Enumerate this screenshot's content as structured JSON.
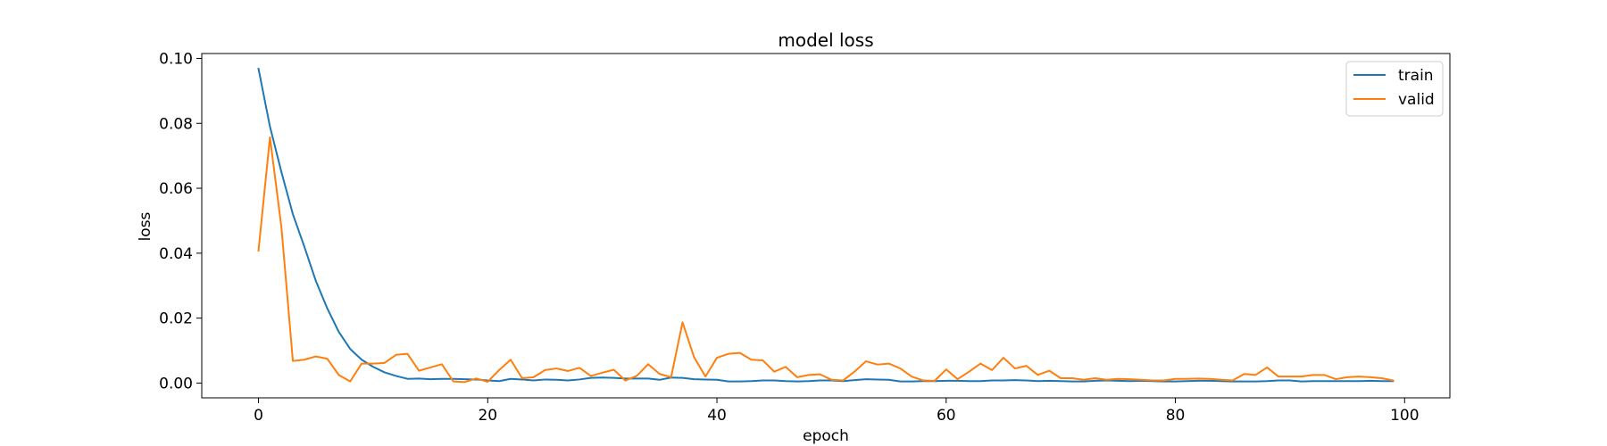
{
  "chart_data": {
    "type": "line",
    "title": "model loss",
    "xlabel": "epoch",
    "ylabel": "loss",
    "xlim": [
      -4.95,
      103.95
    ],
    "ylim": [
      -0.00455,
      0.1015
    ],
    "xticks": [
      0,
      20,
      40,
      60,
      80,
      100
    ],
    "xtick_labels": [
      "0",
      "20",
      "40",
      "60",
      "80",
      "100"
    ],
    "yticks": [
      0.0,
      0.02,
      0.04,
      0.06,
      0.08,
      0.1
    ],
    "ytick_labels": [
      "0.00",
      "0.02",
      "0.04",
      "0.06",
      "0.08",
      "0.10"
    ],
    "grid": false,
    "legend_position": "top-right",
    "series": [
      {
        "name": "train",
        "color": "#1f77b4",
        "values": [
          0.0968,
          0.079,
          0.065,
          0.052,
          0.042,
          0.0315,
          0.023,
          0.0158,
          0.0105,
          0.0072,
          0.005,
          0.0033,
          0.0022,
          0.0013,
          0.0014,
          0.0012,
          0.0013,
          0.0013,
          0.0012,
          0.0011,
          0.0008,
          0.0006,
          0.0013,
          0.0011,
          0.0008,
          0.0011,
          0.001,
          0.0008,
          0.0011,
          0.0016,
          0.0017,
          0.0016,
          0.0014,
          0.0014,
          0.0014,
          0.001,
          0.0017,
          0.0016,
          0.0012,
          0.0011,
          0.001,
          0.0005,
          0.0005,
          0.0006,
          0.0008,
          0.0008,
          0.0006,
          0.0005,
          0.0006,
          0.0008,
          0.0008,
          0.0006,
          0.0009,
          0.0012,
          0.0011,
          0.001,
          0.0005,
          0.0005,
          0.0006,
          0.0006,
          0.0007,
          0.0007,
          0.0006,
          0.0006,
          0.0008,
          0.0008,
          0.0009,
          0.0008,
          0.0006,
          0.0007,
          0.0006,
          0.0005,
          0.0005,
          0.0007,
          0.0008,
          0.0007,
          0.0006,
          0.0007,
          0.0006,
          0.0005,
          0.0005,
          0.0006,
          0.0007,
          0.0007,
          0.0006,
          0.0005,
          0.0005,
          0.0005,
          0.0006,
          0.0008,
          0.0008,
          0.0005,
          0.0006,
          0.0006,
          0.0006,
          0.0006,
          0.0006,
          0.0007,
          0.0006,
          0.0006
        ]
      },
      {
        "name": "valid",
        "color": "#ff7f0e",
        "values": [
          0.0408,
          0.0757,
          0.048,
          0.0068,
          0.0072,
          0.0082,
          0.0075,
          0.0025,
          0.0005,
          0.006,
          0.006,
          0.0062,
          0.0087,
          0.009,
          0.0038,
          0.0048,
          0.0058,
          0.0005,
          0.0003,
          0.0014,
          0.0004,
          0.004,
          0.0072,
          0.0015,
          0.0018,
          0.004,
          0.0045,
          0.0037,
          0.0047,
          0.0022,
          0.0032,
          0.0041,
          0.0008,
          0.0022,
          0.0058,
          0.0028,
          0.0018,
          0.0187,
          0.008,
          0.002,
          0.0078,
          0.009,
          0.0093,
          0.0072,
          0.007,
          0.0035,
          0.005,
          0.0018,
          0.0025,
          0.0027,
          0.001,
          0.0008,
          0.0035,
          0.0067,
          0.0057,
          0.006,
          0.0045,
          0.002,
          0.0008,
          0.0007,
          0.0042,
          0.0012,
          0.0035,
          0.006,
          0.004,
          0.0078,
          0.0045,
          0.0053,
          0.0025,
          0.0038,
          0.0015,
          0.0015,
          0.001,
          0.0015,
          0.001,
          0.0013,
          0.0012,
          0.001,
          0.0008,
          0.0008,
          0.0013,
          0.0013,
          0.0014,
          0.0013,
          0.001,
          0.0008,
          0.0028,
          0.0025,
          0.0048,
          0.002,
          0.002,
          0.002,
          0.0025,
          0.0025,
          0.0012,
          0.0018,
          0.002,
          0.0018,
          0.0015,
          0.0008
        ]
      }
    ]
  }
}
